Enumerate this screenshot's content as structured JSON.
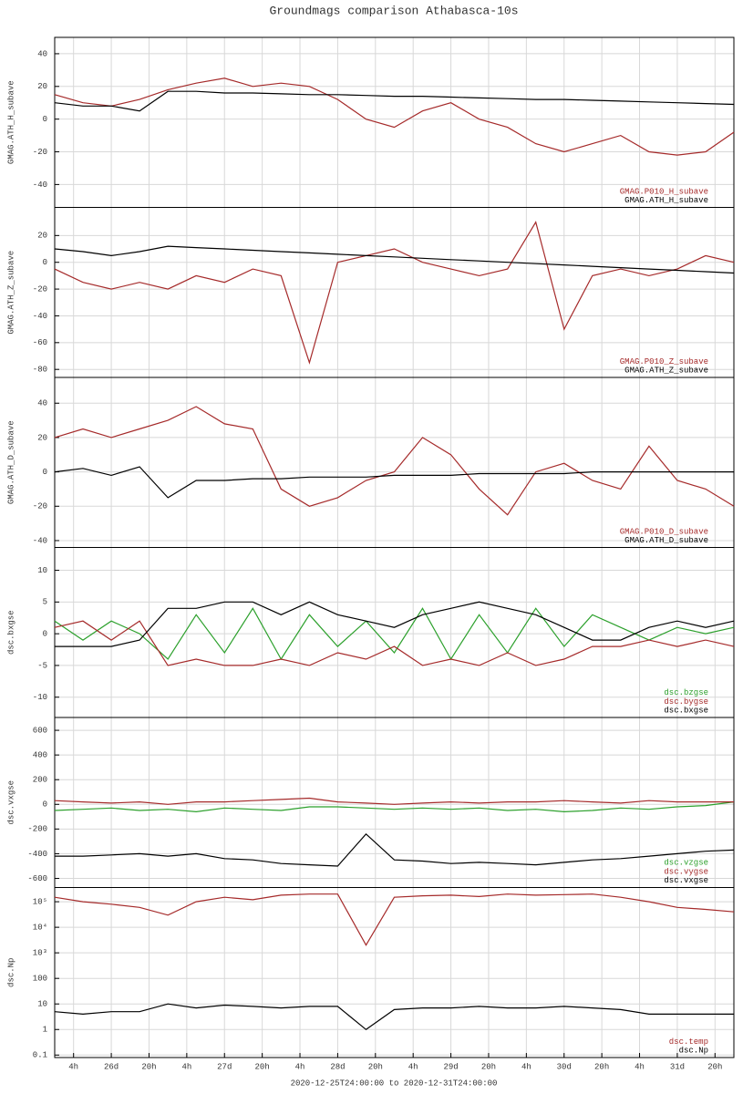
{
  "chart_data": [
    {
      "type": "line",
      "title": "Groundmags comparison Athabasca-10s",
      "ylabel": "GMAG.ATH_H_subave",
      "x": [
        0,
        6,
        12,
        18,
        24,
        30,
        36,
        42,
        48,
        54,
        60,
        66,
        72,
        78,
        84,
        90,
        96,
        102,
        108,
        114,
        120,
        126,
        132,
        138,
        144
      ],
      "ylim": [
        -54,
        50
      ],
      "yticks": [
        -40,
        -20,
        0,
        20,
        40
      ],
      "grid": true,
      "series": [
        {
          "name": "GMAG.P010_H_subave",
          "color": "#a52a2a",
          "values": [
            15,
            10,
            8,
            12,
            18,
            22,
            25,
            20,
            22,
            20,
            12,
            0,
            -5,
            5,
            10,
            0,
            -5,
            -15,
            -20,
            -15,
            -10,
            -20,
            -22,
            -20,
            -8
          ]
        },
        {
          "name": "GMAG.ATH_H_subave",
          "color": "#000000",
          "values": [
            10,
            8,
            8,
            5,
            17,
            17,
            16,
            16,
            15.5,
            15,
            15,
            14.5,
            14,
            14,
            13.5,
            13,
            12.5,
            12,
            12,
            11.5,
            11,
            10.5,
            10,
            9.5,
            9
          ]
        }
      ]
    },
    {
      "type": "line",
      "ylabel": "GMAG.ATH_Z_subave",
      "x": [
        0,
        6,
        12,
        18,
        24,
        30,
        36,
        42,
        48,
        54,
        60,
        66,
        72,
        78,
        84,
        90,
        96,
        102,
        108,
        114,
        120,
        126,
        132,
        138,
        144
      ],
      "ylim": [
        -86,
        41
      ],
      "yticks": [
        -80,
        -60,
        -40,
        -20,
        0,
        20
      ],
      "grid": true,
      "series": [
        {
          "name": "GMAG.P010_Z_subave",
          "color": "#a52a2a",
          "values": [
            -5,
            -15,
            -20,
            -15,
            -20,
            -10,
            -15,
            -5,
            -10,
            -75,
            0,
            5,
            10,
            0,
            -5,
            -10,
            -5,
            30,
            -50,
            -10,
            -5,
            -10,
            -5,
            5,
            0
          ]
        },
        {
          "name": "GMAG.ATH_Z_subave",
          "color": "#000000",
          "values": [
            10,
            8,
            5,
            8,
            12,
            11,
            10,
            9,
            8,
            7,
            6,
            5,
            4,
            3,
            2,
            1,
            0,
            -1,
            -2,
            -3,
            -4,
            -5,
            -6,
            -7,
            -8
          ]
        }
      ]
    },
    {
      "type": "line",
      "ylabel": "GMAG.ATH_D_subave",
      "x": [
        0,
        6,
        12,
        18,
        24,
        30,
        36,
        42,
        48,
        54,
        60,
        66,
        72,
        78,
        84,
        90,
        96,
        102,
        108,
        114,
        120,
        126,
        132,
        138,
        144
      ],
      "ylim": [
        -44,
        55
      ],
      "yticks": [
        -40,
        -20,
        0,
        20,
        40
      ],
      "grid": true,
      "series": [
        {
          "name": "GMAG.P010_D_subave",
          "color": "#a52a2a",
          "values": [
            20,
            25,
            20,
            25,
            30,
            38,
            28,
            25,
            -10,
            -20,
            -15,
            -5,
            0,
            20,
            10,
            -10,
            -25,
            0,
            5,
            -5,
            -10,
            15,
            -5,
            -10,
            -20
          ]
        },
        {
          "name": "GMAG.ATH_D_subave",
          "color": "#000000",
          "values": [
            0,
            2,
            -2,
            3,
            -15,
            -5,
            -5,
            -4,
            -4,
            -3,
            -3,
            -3,
            -2,
            -2,
            -2,
            -1,
            -1,
            -1,
            -1,
            0,
            0,
            0,
            0,
            0,
            0
          ]
        }
      ]
    },
    {
      "type": "line",
      "ylabel": "dsc.bxgse",
      "x": [
        0,
        6,
        12,
        18,
        24,
        30,
        36,
        42,
        48,
        54,
        60,
        66,
        72,
        78,
        84,
        90,
        96,
        102,
        108,
        114,
        120,
        126,
        132,
        138,
        144
      ],
      "ylim": [
        -13.2,
        13.6
      ],
      "yticks": [
        -10,
        -5,
        0,
        5,
        10
      ],
      "grid": true,
      "series": [
        {
          "name": "dsc.bzgse",
          "color": "#2ca02c",
          "values": [
            2,
            -1,
            2,
            0,
            -4,
            3,
            -3,
            4,
            -4,
            3,
            -2,
            2,
            -3,
            4,
            -4,
            3,
            -3,
            4,
            -2,
            3,
            1,
            -1,
            1,
            0,
            1
          ]
        },
        {
          "name": "dsc.bygse",
          "color": "#a52a2a",
          "values": [
            1,
            2,
            -1,
            2,
            -5,
            -4,
            -5,
            -5,
            -4,
            -5,
            -3,
            -4,
            -2,
            -5,
            -4,
            -5,
            -3,
            -5,
            -4,
            -2,
            -2,
            -1,
            -2,
            -1,
            -2
          ]
        },
        {
          "name": "dsc.bxgse",
          "color": "#000000",
          "values": [
            -2,
            -2,
            -2,
            -1,
            4,
            4,
            5,
            5,
            3,
            5,
            3,
            2,
            1,
            3,
            4,
            5,
            4,
            3,
            1,
            -1,
            -1,
            1,
            2,
            1,
            2
          ]
        }
      ]
    },
    {
      "type": "line",
      "ylabel": "dsc.vxgse",
      "x": [
        0,
        6,
        12,
        18,
        24,
        30,
        36,
        42,
        48,
        54,
        60,
        66,
        72,
        78,
        84,
        90,
        96,
        102,
        108,
        114,
        120,
        126,
        132,
        138,
        144
      ],
      "ylim": [
        -674,
        704
      ],
      "yticks": [
        -600,
        -400,
        -200,
        0,
        200,
        400,
        600
      ],
      "grid": true,
      "series": [
        {
          "name": "dsc.vzgse",
          "color": "#2ca02c",
          "values": [
            -50,
            -40,
            -30,
            -50,
            -40,
            -60,
            -30,
            -40,
            -50,
            -20,
            -20,
            -30,
            -40,
            -30,
            -40,
            -30,
            -50,
            -40,
            -60,
            -50,
            -30,
            -40,
            -20,
            -10,
            20
          ]
        },
        {
          "name": "dsc.vygse",
          "color": "#a52a2a",
          "values": [
            30,
            20,
            10,
            20,
            0,
            20,
            20,
            30,
            40,
            50,
            20,
            10,
            0,
            10,
            20,
            10,
            20,
            20,
            30,
            20,
            10,
            30,
            20,
            20,
            20
          ]
        },
        {
          "name": "dsc.vxgse",
          "color": "#000000",
          "values": [
            -420,
            -420,
            -410,
            -400,
            -420,
            -400,
            -440,
            -450,
            -480,
            -490,
            -500,
            -240,
            -450,
            -460,
            -480,
            -470,
            -480,
            -490,
            -470,
            -450,
            -440,
            -420,
            -400,
            -380,
            -370
          ]
        }
      ]
    },
    {
      "type": "line",
      "ylabel": "dsc.Np",
      "yscale": "log",
      "xlabel": "2020-12-25T24:00:00 to 2020-12-31T24:00:00",
      "x": [
        0,
        6,
        12,
        18,
        24,
        30,
        36,
        42,
        48,
        54,
        60,
        66,
        72,
        78,
        84,
        90,
        96,
        102,
        108,
        114,
        120,
        126,
        132,
        138,
        144
      ],
      "xlim": [
        0,
        144
      ],
      "xticks": [
        {
          "value": 4,
          "label": "4h"
        },
        {
          "value": 12,
          "label": "26d"
        },
        {
          "value": 20,
          "label": "20h"
        },
        {
          "value": 28,
          "label": "4h"
        },
        {
          "value": 36,
          "label": "27d"
        },
        {
          "value": 44,
          "label": "20h"
        },
        {
          "value": 52,
          "label": "4h"
        },
        {
          "value": 60,
          "label": "28d"
        },
        {
          "value": 68,
          "label": "20h"
        },
        {
          "value": 76,
          "label": "4h"
        },
        {
          "value": 84,
          "label": "29d"
        },
        {
          "value": 92,
          "label": "20h"
        },
        {
          "value": 100,
          "label": "4h"
        },
        {
          "value": 108,
          "label": "30d"
        },
        {
          "value": 116,
          "label": "20h"
        },
        {
          "value": 124,
          "label": "4h"
        },
        {
          "value": 132,
          "label": "31d"
        },
        {
          "value": 140,
          "label": "20h"
        }
      ],
      "ylim": [
        0.08,
        360000
      ],
      "yticks": [
        0.1,
        1,
        10,
        100,
        {
          "value": 1000,
          "label": "10³"
        },
        {
          "value": 10000,
          "label": "10⁴"
        },
        {
          "value": 100000,
          "label": "10⁵"
        }
      ],
      "grid": true,
      "series": [
        {
          "name": "dsc.temp",
          "color": "#a52a2a",
          "values": [
            150000,
            100000,
            80000,
            60000,
            30000,
            100000,
            150000,
            120000,
            180000,
            200000,
            200000,
            2000,
            150000,
            170000,
            180000,
            160000,
            200000,
            180000,
            190000,
            200000,
            150000,
            100000,
            60000,
            50000,
            40000
          ]
        },
        {
          "name": "dsc.Np",
          "color": "#000000",
          "values": [
            5,
            4,
            5,
            5,
            10,
            7,
            9,
            8,
            7,
            8,
            8,
            1,
            6,
            7,
            7,
            8,
            7,
            7,
            8,
            7,
            6,
            4,
            4,
            4,
            4
          ]
        }
      ]
    }
  ]
}
